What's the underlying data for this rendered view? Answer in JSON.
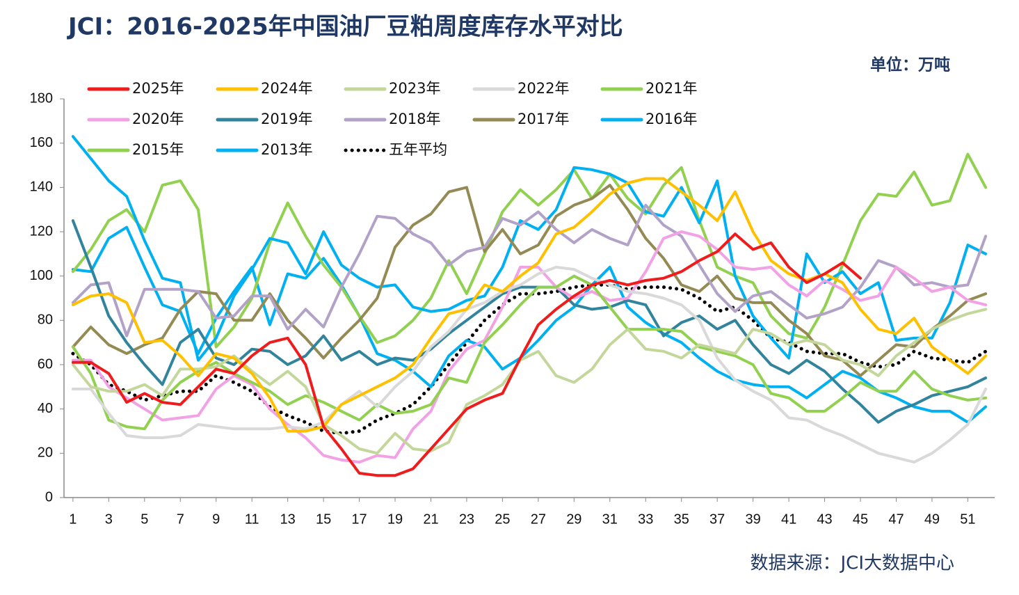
{
  "chart_data": {
    "type": "line",
    "title": "JCI：2016-2025年中国油厂豆粕周度库存水平对比",
    "unit_label": "单位：万吨",
    "source": "数据来源：JCI大数据中心",
    "x": [
      1,
      2,
      3,
      4,
      5,
      6,
      7,
      8,
      9,
      10,
      11,
      12,
      13,
      14,
      15,
      16,
      17,
      18,
      19,
      20,
      21,
      22,
      23,
      24,
      25,
      26,
      27,
      28,
      29,
      30,
      31,
      32,
      33,
      34,
      35,
      36,
      37,
      38,
      39,
      40,
      41,
      42,
      43,
      44,
      45,
      46,
      47,
      48,
      49,
      50,
      51,
      52
    ],
    "xlim": [
      0.5,
      52.5
    ],
    "xticks": [
      1,
      3,
      5,
      7,
      9,
      11,
      13,
      15,
      17,
      19,
      21,
      23,
      25,
      27,
      29,
      31,
      33,
      35,
      37,
      39,
      41,
      43,
      45,
      47,
      49,
      51
    ],
    "ylim": [
      0,
      180
    ],
    "yticks": [
      0,
      20,
      40,
      60,
      80,
      100,
      120,
      140,
      160,
      180
    ],
    "legend": "top-left",
    "series": [
      {
        "name": "2025年",
        "color": "#ee1c1c",
        "values": [
          61,
          61,
          56,
          43,
          47,
          43,
          42,
          50,
          58,
          56,
          64,
          70,
          72,
          60,
          32,
          22,
          11,
          10,
          10,
          13,
          22,
          31,
          40,
          44,
          47,
          63,
          78,
          85,
          91,
          96,
          98,
          96,
          98,
          99,
          102,
          107,
          111,
          119,
          112,
          115,
          104,
          97,
          101,
          106,
          99,
          null,
          null,
          null,
          null,
          null,
          null,
          null
        ]
      },
      {
        "name": "2024年",
        "color": "#ffc000",
        "values": [
          87,
          91,
          92,
          88,
          70,
          71,
          64,
          55,
          65,
          63,
          56,
          45,
          30,
          30,
          32,
          42,
          46,
          50,
          54,
          60,
          72,
          83,
          85,
          96,
          93,
          100,
          106,
          119,
          122,
          129,
          137,
          142,
          144,
          144,
          138,
          132,
          125,
          138,
          120,
          107,
          101,
          98,
          101,
          97,
          85,
          76,
          74,
          81,
          68,
          62,
          56,
          64
        ]
      },
      {
        "name": "2023年",
        "color": "#c4d79b",
        "values": [
          60,
          50,
          48,
          48,
          51,
          46,
          58,
          58,
          59,
          64,
          57,
          51,
          57,
          50,
          33,
          28,
          22,
          20,
          29,
          22,
          21,
          25,
          42,
          46,
          51,
          62,
          66,
          55,
          52,
          58,
          69,
          76,
          67,
          66,
          63,
          69,
          67,
          65,
          76,
          74,
          69,
          71,
          69,
          62,
          60,
          55,
          64,
          70,
          76,
          80,
          83,
          85
        ]
      },
      {
        "name": "2022年",
        "color": "#d9d9d9",
        "values": [
          49,
          49,
          38,
          28,
          27,
          27,
          28,
          33,
          32,
          31,
          31,
          31,
          32,
          31,
          34,
          42,
          48,
          41,
          50,
          57,
          68,
          75,
          85,
          88,
          93,
          96,
          101,
          104,
          103,
          99,
          96,
          93,
          92,
          90,
          87,
          80,
          63,
          53,
          48,
          44,
          36,
          35,
          31,
          28,
          24,
          20,
          18,
          16,
          20,
          26,
          33,
          49
        ]
      },
      {
        "name": "2021年",
        "color": "#92d050",
        "values": [
          68,
          56,
          35,
          32,
          31,
          44,
          52,
          57,
          61,
          56,
          52,
          48,
          42,
          46,
          43,
          39,
          35,
          42,
          38,
          39,
          42,
          54,
          52,
          70,
          78,
          87,
          95,
          95,
          100,
          96,
          86,
          76,
          76,
          76,
          75,
          68,
          66,
          64,
          60,
          47,
          45,
          39,
          39,
          45,
          52,
          48,
          48,
          57,
          49,
          46,
          44,
          45
        ]
      },
      {
        "name": "2020年",
        "color": "#f2a2e4",
        "values": [
          62,
          62,
          50,
          45,
          40,
          35,
          36,
          37,
          49,
          55,
          51,
          40,
          33,
          27,
          19,
          17,
          16,
          19,
          18,
          31,
          39,
          57,
          67,
          71,
          86,
          104,
          104,
          95,
          90,
          93,
          89,
          90,
          102,
          117,
          120,
          118,
          112,
          104,
          103,
          104,
          96,
          91,
          98,
          94,
          89,
          91,
          104,
          99,
          93,
          95,
          89,
          87
        ]
      },
      {
        "name": "2019年",
        "color": "#31849b",
        "values": [
          125,
          104,
          82,
          70,
          60,
          51,
          70,
          76,
          63,
          60,
          67,
          66,
          60,
          64,
          73,
          62,
          66,
          60,
          63,
          62,
          67,
          74,
          80,
          86,
          92,
          95,
          95,
          95,
          87,
          85,
          86,
          89,
          87,
          73,
          79,
          82,
          76,
          80,
          69,
          60,
          56,
          62,
          57,
          49,
          42,
          34,
          39,
          42,
          46,
          48,
          50,
          54
        ]
      },
      {
        "name": "2018年",
        "color": "#b3a2c7",
        "values": [
          88,
          96,
          97,
          73,
          94,
          94,
          94,
          93,
          81,
          82,
          91,
          91,
          76,
          85,
          77,
          95,
          110,
          127,
          126,
          119,
          115,
          105,
          111,
          113,
          126,
          123,
          129,
          121,
          115,
          121,
          117,
          114,
          132,
          123,
          118,
          105,
          92,
          84,
          91,
          93,
          87,
          81,
          83,
          86,
          95,
          107,
          104,
          96,
          97,
          95,
          96,
          118
        ]
      },
      {
        "name": "2017年",
        "color": "#948a54",
        "values": [
          68,
          77,
          69,
          65,
          69,
          72,
          85,
          93,
          92,
          80,
          80,
          92,
          80,
          72,
          63,
          72,
          80,
          90,
          113,
          123,
          128,
          138,
          140,
          111,
          121,
          110,
          114,
          127,
          132,
          135,
          141,
          130,
          117,
          108,
          96,
          93,
          100,
          90,
          88,
          88,
          80,
          74,
          64,
          62,
          55,
          62,
          69,
          68,
          76,
          82,
          89,
          92
        ]
      },
      {
        "name": "2016年",
        "color": "#00b0f0",
        "values": [
          163,
          153,
          143,
          136,
          116,
          99,
          97,
          62,
          72,
          91,
          103,
          117,
          115,
          101,
          120,
          105,
          99,
          95,
          96,
          86,
          84,
          85,
          89,
          91,
          104,
          125,
          121,
          130,
          149,
          148,
          146,
          142,
          129,
          127,
          140,
          124,
          143,
          100,
          82,
          72,
          63,
          110,
          97,
          102,
          92,
          97,
          71,
          72,
          72,
          88,
          114,
          110
        ]
      },
      {
        "name": "2015年",
        "color": "#92d050",
        "values": [
          102,
          112,
          125,
          130,
          120,
          141,
          143,
          130,
          68,
          77,
          90,
          115,
          133,
          118,
          105,
          95,
          82,
          70,
          73,
          80,
          90,
          107,
          92,
          110,
          129,
          139,
          132,
          139,
          148,
          135,
          146,
          135,
          128,
          141,
          149,
          125,
          104,
          100,
          97,
          82,
          74,
          72,
          86,
          105,
          125,
          137,
          136,
          147,
          132,
          134,
          155,
          140
        ]
      },
      {
        "name": "2013年",
        "color": "#00b0f0",
        "values": [
          103,
          102,
          117,
          122,
          104,
          87,
          84,
          65,
          81,
          93,
          104,
          78,
          101,
          99,
          108,
          96,
          82,
          65,
          62,
          57,
          50,
          64,
          71,
          68,
          58,
          63,
          71,
          80,
          86,
          96,
          104,
          86,
          79,
          74,
          70,
          63,
          57,
          53,
          51,
          50,
          50,
          45,
          51,
          57,
          54,
          48,
          45,
          41,
          39,
          39,
          34,
          41
        ]
      },
      {
        "name": "五年平均",
        "color": "#000000",
        "style": "dotted",
        "values": [
          65,
          60,
          51,
          48,
          44,
          46,
          48,
          48,
          55,
          52,
          48,
          41,
          37,
          34,
          30,
          29,
          30,
          35,
          38,
          42,
          50,
          60,
          70,
          80,
          87,
          92,
          92,
          93,
          95,
          96,
          96,
          94,
          95,
          95,
          94,
          90,
          84,
          86,
          80,
          72,
          70,
          66,
          65,
          65,
          61,
          59,
          60,
          66,
          63,
          62,
          61,
          66
        ]
      }
    ]
  }
}
